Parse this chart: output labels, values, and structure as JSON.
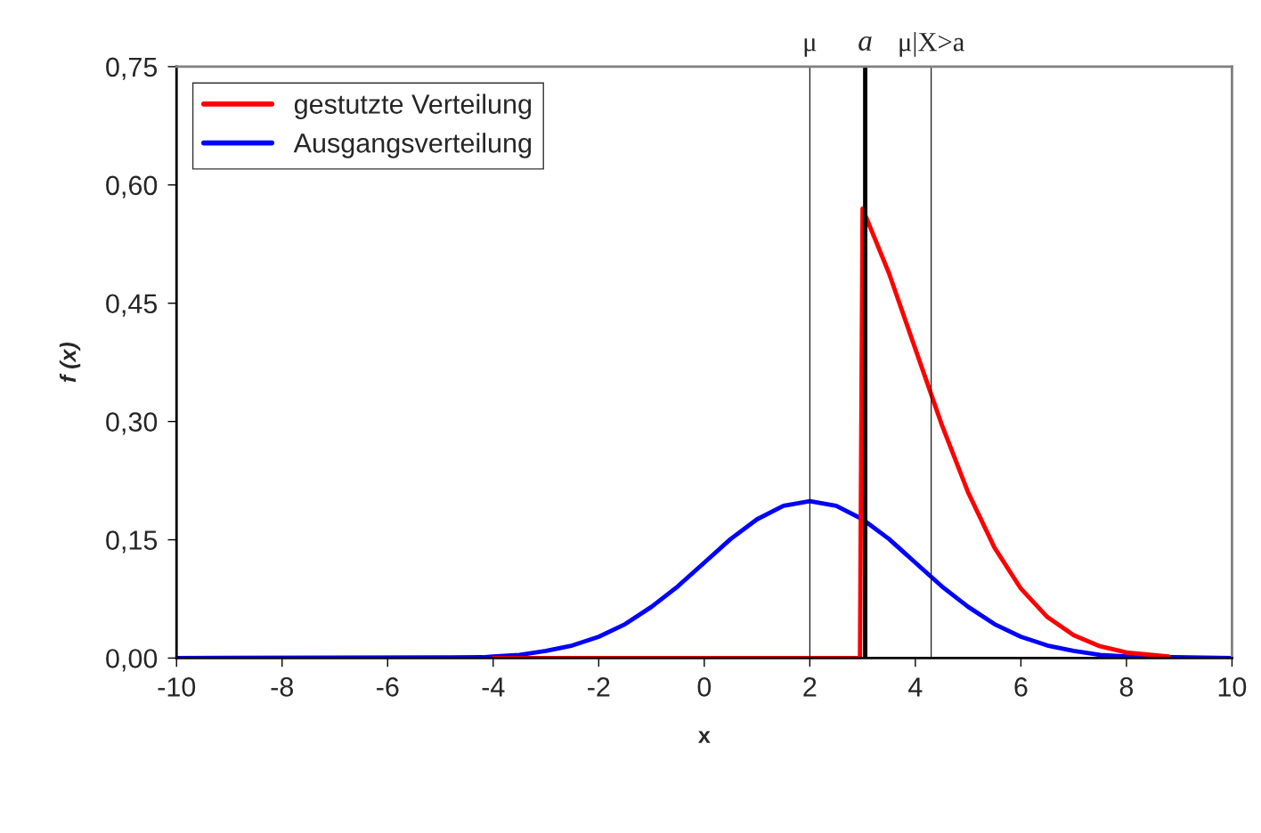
{
  "chart_data": {
    "type": "line",
    "xlabel": "x",
    "ylabel": "f (x)",
    "xlim": [
      -10,
      10
    ],
    "xticks": [
      -10,
      -8,
      -6,
      -4,
      -2,
      0,
      2,
      4,
      6,
      8,
      10
    ],
    "ylim": [
      0,
      0.75
    ],
    "yticks": [
      {
        "value": 0,
        "label": "0,00"
      },
      {
        "value": 0.15,
        "label": "0,15"
      },
      {
        "value": 0.3,
        "label": "0,30"
      },
      {
        "value": 0.45,
        "label": "0,45"
      },
      {
        "value": 0.6,
        "label": "0,60"
      },
      {
        "value": 0.75,
        "label": "0,75"
      }
    ],
    "grid": false,
    "legend": "top left",
    "marker": "none",
    "line_style": "solid",
    "series": [
      {
        "name": "Ausgangsverteilung",
        "color": "#0000ff",
        "x": [
          -10,
          -4.2,
          -4,
          -3.5,
          -3,
          -2.5,
          -2,
          -1.5,
          -1,
          -0.5,
          0,
          0.5,
          1,
          1.5,
          2,
          2.5,
          3,
          3.5,
          4,
          4.5,
          5,
          5.5,
          6,
          6.5,
          7,
          7.5,
          8,
          10
        ],
        "values": [
          0,
          0.001,
          0.002,
          0.004,
          0.009,
          0.016,
          0.027,
          0.043,
          0.065,
          0.091,
          0.121,
          0.151,
          0.176,
          0.193,
          0.199,
          0.193,
          0.176,
          0.151,
          0.121,
          0.091,
          0.065,
          0.043,
          0.027,
          0.016,
          0.009,
          0.004,
          0.002,
          0
        ]
      },
      {
        "name": "gestutzte Verteilung",
        "color": "#ff0000",
        "x": [
          -4,
          2.95,
          3.0,
          3.5,
          4,
          4.5,
          5,
          5.5,
          6,
          6.5,
          7,
          7.5,
          8,
          8.8
        ],
        "values": [
          0,
          0,
          0.57,
          0.488,
          0.392,
          0.296,
          0.21,
          0.14,
          0.088,
          0.052,
          0.029,
          0.015,
          0.007,
          0.002
        ]
      },
      {
        "color": "#000000",
        "x": [
          3.05,
          3.05
        ],
        "values": [
          0,
          0.75
        ]
      }
    ],
    "ref_lines": [
      {
        "axis": "x",
        "value": 2,
        "label": "μ",
        "color": "#000000"
      },
      {
        "axis": "x",
        "value": 4.3,
        "label": "μ|X>a",
        "color": "#000000"
      }
    ],
    "annotations": [
      {
        "text": "a",
        "x": 3.05,
        "y": 0.75
      }
    ]
  }
}
